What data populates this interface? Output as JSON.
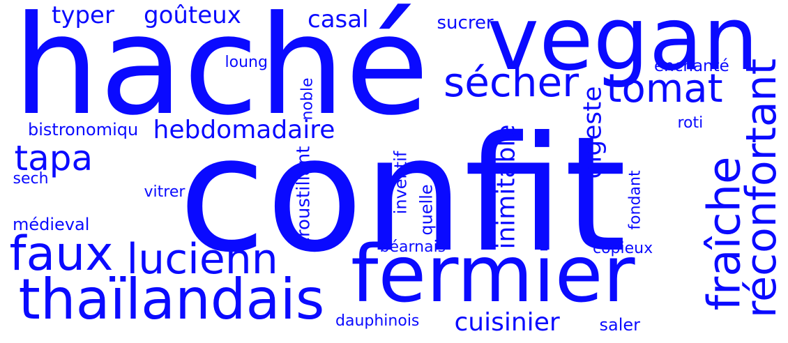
{
  "accent_color": "#0a0aff",
  "background_color": "#ffffff",
  "words": [
    "haché",
    "vegan",
    "confit",
    "fermier",
    "thaïlandais",
    "faux",
    "lucienn",
    "sécher",
    "tomat",
    "fraîche",
    "réconfortant",
    "tapa",
    "hebdomadaire",
    "typer",
    "goûteux",
    "casal",
    "sucrer",
    "loung",
    "noble",
    "enchanté",
    "digeste",
    "roti",
    "bistronomiqu",
    "sech",
    "vitrer",
    "médieval",
    "croustillant",
    "inventif",
    "quelle",
    "inimitable",
    "fondant",
    "béarnais",
    "copieux",
    "dauphinois",
    "cuisinier",
    "saler"
  ]
}
